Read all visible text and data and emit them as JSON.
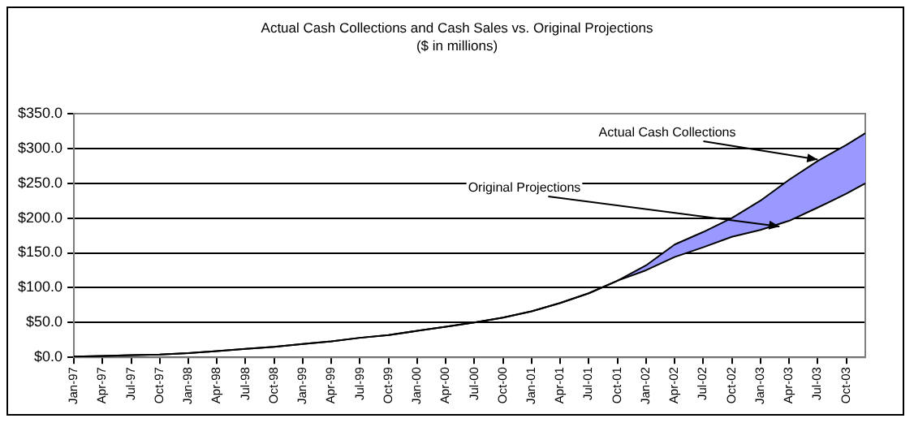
{
  "chart_data": {
    "type": "line",
    "title": "Actual Cash Collections and Cash Sales vs. Original Projections",
    "subtitle": "($ in millions)",
    "x": [
      "1997-01",
      "1997-04",
      "1997-07",
      "1997-10",
      "1998-01",
      "1998-04",
      "1998-07",
      "1998-10",
      "1999-01",
      "1999-04",
      "1999-07",
      "1999-10",
      "2000-01",
      "2000-04",
      "2000-07",
      "2000-10",
      "2001-01",
      "2001-04",
      "2001-07",
      "2001-10",
      "2002-01",
      "2002-04",
      "2002-07",
      "2002-10",
      "2003-01",
      "2003-04",
      "2003-07",
      "2003-10",
      "2003-12"
    ],
    "series": [
      {
        "type": "area",
        "color": "#9999ff",
        "values": [
          1,
          2,
          3,
          4,
          6,
          9,
          12,
          15,
          19,
          23,
          28,
          32,
          38,
          44,
          50,
          57,
          66,
          78,
          92,
          110,
          132,
          162,
          180,
          200,
          225,
          255,
          282,
          305,
          322
        ]
      },
      {
        "color": "#000000",
        "values": [
          1,
          2,
          3,
          4,
          6,
          9,
          12,
          15,
          19,
          23,
          28,
          32,
          38,
          44,
          50,
          57,
          66,
          78,
          92,
          110,
          125,
          144,
          158,
          173,
          183,
          196,
          215,
          235,
          250
        ]
      }
    ],
    "xlim": [
      "1997-01",
      "2003-12"
    ],
    "xticks": [
      {
        "value": "1997-01",
        "label": "Jan-97"
      },
      {
        "value": "1997-04",
        "label": "Apr-97"
      },
      {
        "value": "1997-07",
        "label": "Jul-97"
      },
      {
        "value": "1997-10",
        "label": "Oct-97"
      },
      {
        "value": "1998-01",
        "label": "Jan-98"
      },
      {
        "value": "1998-04",
        "label": "Apr-98"
      },
      {
        "value": "1998-07",
        "label": "Jul-98"
      },
      {
        "value": "1998-10",
        "label": "Oct-98"
      },
      {
        "value": "1999-01",
        "label": "Jan-99"
      },
      {
        "value": "1999-04",
        "label": "Apr-99"
      },
      {
        "value": "1999-07",
        "label": "Jul-99"
      },
      {
        "value": "1999-10",
        "label": "Oct-99"
      },
      {
        "value": "2000-01",
        "label": "Jan-00"
      },
      {
        "value": "2000-04",
        "label": "Apr-00"
      },
      {
        "value": "2000-07",
        "label": "Jul-00"
      },
      {
        "value": "2000-10",
        "label": "Oct-00"
      },
      {
        "value": "2001-01",
        "label": "Jan-01"
      },
      {
        "value": "2001-04",
        "label": "Apr-01"
      },
      {
        "value": "2001-07",
        "label": "Jul-01"
      },
      {
        "value": "2001-10",
        "label": "Oct-01"
      },
      {
        "value": "2002-01",
        "label": "Jan-02"
      },
      {
        "value": "2002-04",
        "label": "Apr-02"
      },
      {
        "value": "2002-07",
        "label": "Jul-02"
      },
      {
        "value": "2002-10",
        "label": "Oct-02"
      },
      {
        "value": "2003-01",
        "label": "Jan-03"
      },
      {
        "value": "2003-04",
        "label": "Apr-03"
      },
      {
        "value": "2003-07",
        "label": "Jul-03"
      },
      {
        "value": "2003-10",
        "label": "Oct-03"
      }
    ],
    "ylim": [
      0,
      350
    ],
    "yticks": [
      {
        "value": 0,
        "label": "$0.0"
      },
      {
        "value": 50,
        "label": "$50.0"
      },
      {
        "value": 100,
        "label": "$100.0"
      },
      {
        "value": 150,
        "label": "$150.0"
      },
      {
        "value": 200,
        "label": "$200.0"
      },
      {
        "value": 250,
        "label": "$250.0"
      },
      {
        "value": 300,
        "label": "$300.0"
      },
      {
        "value": 350,
        "label": "$350.0"
      }
    ],
    "grid": "y",
    "legend": false,
    "annotations": [
      {
        "text": "Actual Cash Collections",
        "x": "2003-07",
        "y": 284
      },
      {
        "text": "Original Projections",
        "x": "2003-03",
        "y": 188
      }
    ]
  }
}
